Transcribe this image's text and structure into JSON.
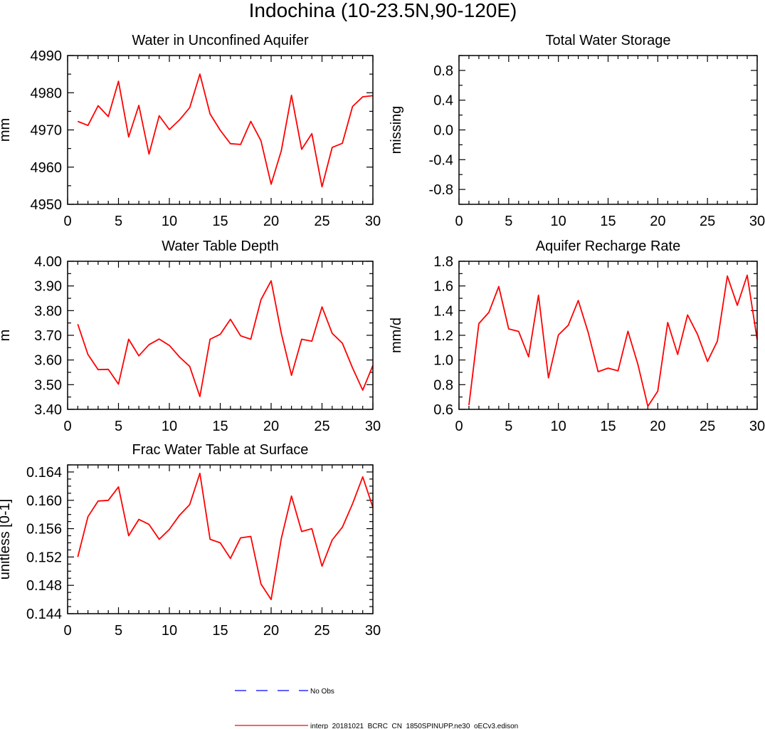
{
  "figure_title": "Indochina (10-23.5N,90-120E)",
  "legend": {
    "items": [
      {
        "label": "No Obs",
        "color": "#0000ff",
        "style": "dashed"
      },
      {
        "label": "interp_20181021_BCRC_CN_1850SPINUPP.ne30_oECv3.edison",
        "color": "#ff0000",
        "style": "solid"
      }
    ]
  },
  "chart_data": [
    {
      "id": "water-unconfined-aquifer",
      "type": "line",
      "title": "Water in Unconfined Aquifer",
      "ylabel": "mm",
      "xlim": [
        0,
        30
      ],
      "ylim": [
        4950,
        4990
      ],
      "xticks": [
        0,
        5,
        10,
        15,
        20,
        25,
        30
      ],
      "yticks": [
        4950,
        4960,
        4970,
        4980,
        4990
      ],
      "ytick_labels": [
        "4950",
        "4960",
        "4970",
        "4980",
        "4990"
      ],
      "yminor": 2,
      "series": [
        {
          "color": "#ff0000",
          "x": [
            1,
            2,
            3,
            4,
            5,
            6,
            7,
            8,
            9,
            10,
            11,
            12,
            13,
            14,
            15,
            16,
            17,
            18,
            19,
            20,
            21,
            22,
            23,
            24,
            25,
            26,
            27,
            28,
            29,
            30
          ],
          "y": [
            4972.3,
            4971.2,
            4976.5,
            4973.6,
            4983.1,
            4968.1,
            4976.6,
            4963.5,
            4973.8,
            4970.1,
            4972.7,
            4976.0,
            4985.0,
            4974.3,
            4969.9,
            4966.3,
            4966.1,
            4972.3,
            4967.1,
            4955.4,
            4964.4,
            4979.3,
            4964.8,
            4969.0,
            4954.7,
            4965.3,
            4966.4,
            4976.3,
            4978.9,
            4979.2
          ]
        }
      ]
    },
    {
      "id": "total-water-storage",
      "type": "line",
      "title": "Total Water Storage",
      "ylabel": "missing",
      "xlim": [
        0,
        30
      ],
      "ylim": [
        -1,
        1
      ],
      "xticks": [
        0,
        5,
        10,
        15,
        20,
        25,
        30
      ],
      "yticks": [
        -0.8,
        -0.4,
        0.0,
        0.4,
        0.8
      ],
      "ytick_labels": [
        "-0.8",
        "-0.4",
        "0.0",
        "0.4",
        "0.8"
      ],
      "yminor": 2,
      "series": []
    },
    {
      "id": "water-table-depth",
      "type": "line",
      "title": "Water Table Depth",
      "ylabel": "m",
      "xlim": [
        0,
        30
      ],
      "ylim": [
        3.4,
        4.0
      ],
      "xticks": [
        0,
        5,
        10,
        15,
        20,
        25,
        30
      ],
      "yticks": [
        3.4,
        3.5,
        3.6,
        3.7,
        3.8,
        3.9,
        4.0
      ],
      "ytick_labels": [
        "3.40",
        "3.50",
        "3.60",
        "3.70",
        "3.80",
        "3.90",
        "4.00"
      ],
      "yminor": 2,
      "series": [
        {
          "color": "#ff0000",
          "x": [
            1,
            2,
            3,
            4,
            5,
            6,
            7,
            8,
            9,
            10,
            11,
            12,
            13,
            14,
            15,
            16,
            17,
            18,
            19,
            20,
            21,
            22,
            23,
            24,
            25,
            26,
            27,
            28,
            29,
            30
          ],
          "y": [
            3.745,
            3.622,
            3.561,
            3.562,
            3.502,
            3.684,
            3.617,
            3.662,
            3.685,
            3.659,
            3.612,
            3.574,
            3.452,
            3.684,
            3.704,
            3.765,
            3.698,
            3.684,
            3.844,
            3.921,
            3.708,
            3.538,
            3.684,
            3.676,
            3.815,
            3.708,
            3.668,
            3.568,
            3.478,
            3.578
          ]
        }
      ]
    },
    {
      "id": "aquifer-recharge-rate",
      "type": "line",
      "title": "Aquifer Recharge Rate",
      "ylabel": "mm/d",
      "xlim": [
        0,
        30
      ],
      "ylim": [
        0.6,
        1.8
      ],
      "xticks": [
        0,
        5,
        10,
        15,
        20,
        25,
        30
      ],
      "yticks": [
        0.6,
        0.8,
        1.0,
        1.2,
        1.4,
        1.6,
        1.8
      ],
      "ytick_labels": [
        "0.6",
        "0.8",
        "1.0",
        "1.2",
        "1.4",
        "1.6",
        "1.8"
      ],
      "yminor": 2,
      "series": [
        {
          "color": "#ff0000",
          "x": [
            1,
            2,
            3,
            4,
            5,
            6,
            7,
            8,
            9,
            10,
            11,
            12,
            13,
            14,
            15,
            16,
            17,
            18,
            19,
            20,
            21,
            22,
            23,
            24,
            25,
            26,
            27,
            28,
            29,
            30
          ],
          "y": [
            0.635,
            1.295,
            1.385,
            1.595,
            1.252,
            1.232,
            1.026,
            1.525,
            0.855,
            1.203,
            1.282,
            1.482,
            1.222,
            0.905,
            0.934,
            0.912,
            1.233,
            0.964,
            0.624,
            0.747,
            1.304,
            1.045,
            1.365,
            1.207,
            0.988,
            1.153,
            1.68,
            1.443,
            1.687,
            1.165
          ]
        }
      ]
    },
    {
      "id": "frac-water-table-surface",
      "type": "line",
      "title": "Frac Water Table at Surface",
      "ylabel": "unitless [0-1]",
      "xlim": [
        0,
        30
      ],
      "ylim": [
        0.144,
        0.165
      ],
      "xticks": [
        0,
        5,
        10,
        15,
        20,
        25,
        30
      ],
      "yticks": [
        0.144,
        0.148,
        0.152,
        0.156,
        0.16,
        0.164
      ],
      "ytick_labels": [
        "0.144",
        "0.148",
        "0.152",
        "0.156",
        "0.160",
        "0.164"
      ],
      "yminor": 4,
      "series": [
        {
          "color": "#ff0000",
          "x": [
            1,
            2,
            3,
            4,
            5,
            6,
            7,
            8,
            9,
            10,
            11,
            12,
            13,
            14,
            15,
            16,
            17,
            18,
            19,
            20,
            21,
            22,
            23,
            24,
            25,
            26,
            27,
            28,
            29,
            30
          ],
          "y": [
            0.152,
            0.1577,
            0.1599,
            0.16,
            0.1619,
            0.155,
            0.1573,
            0.1566,
            0.1545,
            0.1559,
            0.1579,
            0.1594,
            0.1638,
            0.1545,
            0.154,
            0.1518,
            0.1547,
            0.1549,
            0.1482,
            0.146,
            0.1546,
            0.1606,
            0.1556,
            0.156,
            0.1507,
            0.1544,
            0.1562,
            0.1595,
            0.1633,
            0.159
          ]
        }
      ]
    }
  ]
}
